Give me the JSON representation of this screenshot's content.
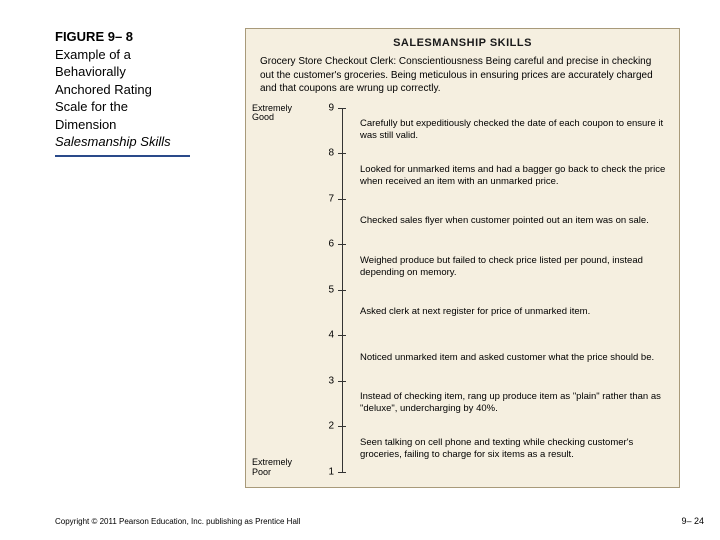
{
  "caption": {
    "figure_number": "FIGURE 9– 8",
    "line1": "Example of a",
    "line2": "Behaviorally",
    "line3": "Anchored Rating",
    "line4": "Scale for the",
    "line5": "Dimension",
    "line6_italic": "Salesmanship Skills"
  },
  "panel": {
    "background_color": "#f5efe0",
    "border_color": "#a89a7a",
    "title": "SALESMANSHIP SKILLS",
    "description": "Grocery Store Checkout Clerk: Conscientiousness Being careful and precise in checking out the customer's groceries. Being meticulous in ensuring prices are accurately charged and that coupons are wrung up correctly.",
    "anchor_high": "Extremely\nGood",
    "anchor_low": "Extremely\nPoor",
    "scale": {
      "min": 1,
      "max": 9,
      "ticks": [
        9,
        8,
        7,
        6,
        5,
        4,
        3,
        2,
        1
      ]
    },
    "behaviors": [
      {
        "at": 8.5,
        "text": "Carefully but expeditiously checked the date of each coupon to ensure it was still valid."
      },
      {
        "at": 7.5,
        "text": "Looked for unmarked items and had a bagger go back to check the price when received an item with an unmarked price."
      },
      {
        "at": 6.5,
        "text": "Checked sales flyer when customer pointed out an item was on sale."
      },
      {
        "at": 5.5,
        "text": "Weighed produce but failed to check price listed per pound, instead depending on memory."
      },
      {
        "at": 4.5,
        "text": "Asked clerk at next register for price of unmarked item."
      },
      {
        "at": 3.5,
        "text": "Noticed unmarked item and asked customer what the price should be."
      },
      {
        "at": 2.5,
        "text": "Instead of checking item, rang up produce item as \"plain\" rather than as \"deluxe\", undercharging by 40%."
      },
      {
        "at": 1.5,
        "text": "Seen talking on cell phone and texting while checking customer's groceries, failing to charge for six items as a result."
      }
    ]
  },
  "footer": {
    "copyright": "Copyright © 2011 Pearson Education, Inc. publishing as Prentice Hall",
    "slide_number": "9– 24"
  },
  "colors": {
    "rule": "#2a4a8a",
    "text": "#000000",
    "panel_text": "#222222"
  }
}
